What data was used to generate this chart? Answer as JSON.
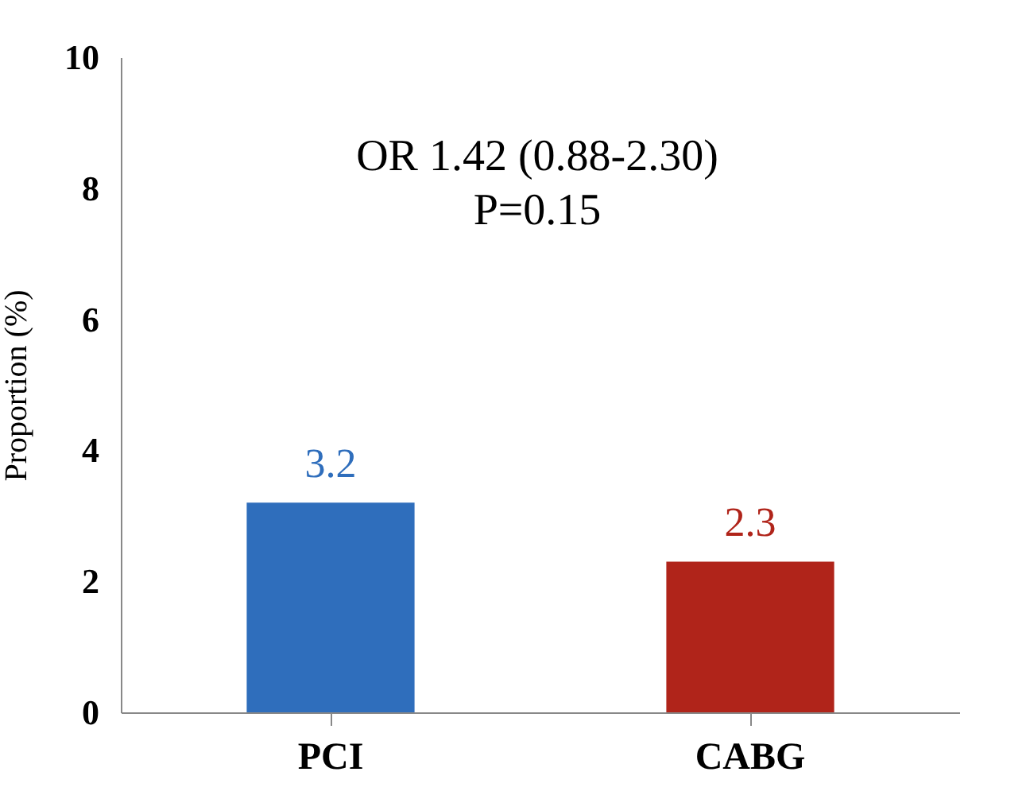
{
  "chart_data": {
    "type": "bar",
    "ylabel": "Proportion (%)",
    "categories": [
      "PCI",
      "CABG"
    ],
    "values": [
      3.2,
      2.3
    ],
    "colors": [
      "#2f6ebc",
      "#b0241a"
    ],
    "ylim": [
      0,
      10
    ],
    "yticks": [
      0,
      2,
      4,
      6,
      8,
      10
    ],
    "data_labels": true,
    "grid": false,
    "annotations": [
      "OR 1.42 (0.88-2.30)",
      "P=0.15"
    ]
  }
}
